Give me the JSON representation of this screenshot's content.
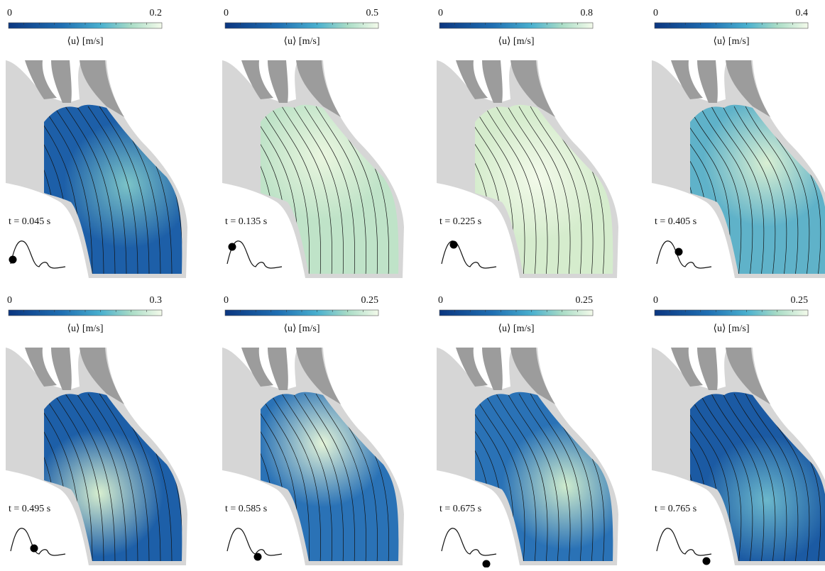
{
  "panels": [
    {
      "scale_min": "0",
      "scale_max": "0.2",
      "scale_label": "⟨u⟩ [m/s]",
      "time": "t = 0.045 s"
    },
    {
      "scale_min": "0",
      "scale_max": "0.5",
      "scale_label": "⟨u⟩ [m/s]",
      "time": "t = 0.135 s"
    },
    {
      "scale_min": "0",
      "scale_max": "0.8",
      "scale_label": "⟨u⟩ [m/s]",
      "time": "t = 0.225 s"
    },
    {
      "scale_min": "0",
      "scale_max": "0.4",
      "scale_label": "⟨u⟩ [m/s]",
      "time": "t = 0.405 s"
    },
    {
      "scale_min": "0",
      "scale_max": "0.3",
      "scale_label": "⟨u⟩ [m/s]",
      "time": "t = 0.495 s"
    },
    {
      "scale_min": "0",
      "scale_max": "0.25",
      "scale_label": "⟨u⟩ [m/s]",
      "time": "t = 0.585 s"
    },
    {
      "scale_min": "0",
      "scale_max": "0.25",
      "scale_label": "⟨u⟩ [m/s]",
      "time": "t = 0.675 s"
    },
    {
      "scale_min": "0",
      "scale_max": "0.25",
      "scale_label": "⟨u⟩ [m/s]",
      "time": "t = 0.765 s"
    }
  ]
}
